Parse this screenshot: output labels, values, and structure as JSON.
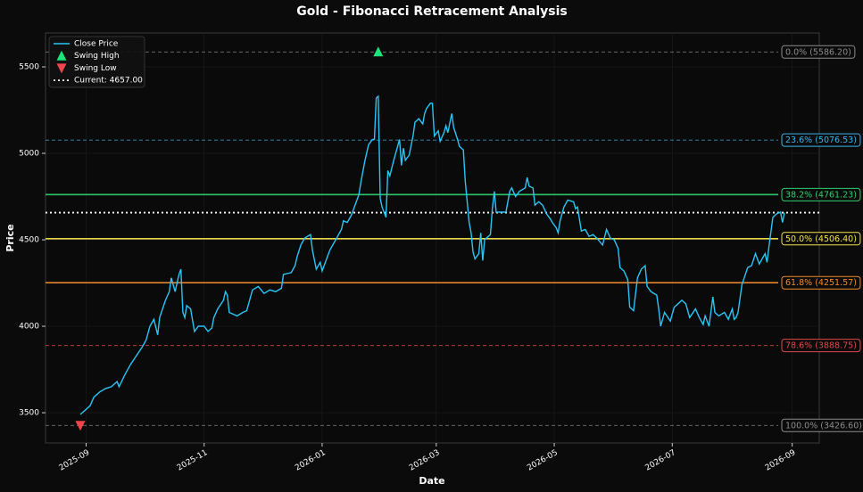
{
  "chart_data": {
    "type": "line",
    "title": "Gold - Fibonacci Retracement Analysis",
    "x_label": "Date",
    "y_label": "Price",
    "x": [
      "2025-08-29",
      "2025-09-03",
      "2025-09-05",
      "2025-09-08",
      "2025-09-11",
      "2025-09-14",
      "2025-09-17",
      "2025-09-18",
      "2025-09-21",
      "2025-09-24",
      "2025-09-27",
      "2025-09-30",
      "2025-10-02",
      "2025-10-04",
      "2025-10-06",
      "2025-10-08",
      "2025-10-09",
      "2025-10-12",
      "2025-10-14",
      "2025-10-15",
      "2025-10-17",
      "2025-10-19",
      "2025-10-20",
      "2025-10-21",
      "2025-10-22",
      "2025-10-23",
      "2025-10-25",
      "2025-10-27",
      "2025-10-29",
      "2025-11-01",
      "2025-11-03",
      "2025-11-05",
      "2025-11-06",
      "2025-11-08",
      "2025-11-11",
      "2025-11-12",
      "2025-11-13",
      "2025-11-14",
      "2025-11-18",
      "2025-11-21",
      "2025-11-23",
      "2025-11-26",
      "2025-11-29",
      "2025-12-02",
      "2025-12-05",
      "2025-12-08",
      "2025-12-11",
      "2025-12-12",
      "2025-12-16",
      "2025-12-18",
      "2025-12-19",
      "2025-12-21",
      "2025-12-23",
      "2025-12-26",
      "2025-12-27",
      "2025-12-29",
      "2025-12-31",
      "2026-01-01",
      "2026-01-03",
      "2026-01-05",
      "2026-01-07",
      "2026-01-09",
      "2026-01-11",
      "2026-01-12",
      "2026-01-14",
      "2026-01-16",
      "2026-01-18",
      "2026-01-20",
      "2026-01-21",
      "2026-01-23",
      "2026-01-25",
      "2026-01-27",
      "2026-01-28",
      "2026-01-29",
      "2026-01-30",
      "2026-01-31",
      "2026-02-01",
      "2026-02-03",
      "2026-02-04",
      "2026-02-05",
      "2026-02-07",
      "2026-02-09",
      "2026-02-10",
      "2026-02-11",
      "2026-02-12",
      "2026-02-13",
      "2026-02-15",
      "2026-02-17",
      "2026-02-18",
      "2026-02-20",
      "2026-02-22",
      "2026-02-23",
      "2026-02-24",
      "2026-02-26",
      "2026-02-27",
      "2026-02-28",
      "2026-03-02",
      "2026-03-03",
      "2026-03-05",
      "2026-03-06",
      "2026-03-07",
      "2026-03-09",
      "2026-03-10",
      "2026-03-12",
      "2026-03-13",
      "2026-03-15",
      "2026-03-16",
      "2026-03-18",
      "2026-03-19",
      "2026-03-20",
      "2026-03-21",
      "2026-03-23",
      "2026-03-24",
      "2026-03-25",
      "2026-03-26",
      "2026-03-29",
      "2026-03-30",
      "2026-03-31",
      "2026-04-01",
      "2026-04-06",
      "2026-04-08",
      "2026-04-09",
      "2026-04-11",
      "2026-04-13",
      "2026-04-16",
      "2026-04-17",
      "2026-04-18",
      "2026-04-20",
      "2026-04-21",
      "2026-04-23",
      "2026-04-25",
      "2026-04-27",
      "2026-04-29",
      "2026-04-30",
      "2026-05-02",
      "2026-05-03",
      "2026-05-04",
      "2026-05-06",
      "2026-05-08",
      "2026-05-11",
      "2026-05-12",
      "2026-05-13",
      "2026-05-15",
      "2026-05-17",
      "2026-05-19",
      "2026-05-21",
      "2026-05-23",
      "2026-05-26",
      "2026-05-28",
      "2026-05-30",
      "2026-06-01",
      "2026-06-03",
      "2026-06-04",
      "2026-06-06",
      "2026-06-08",
      "2026-06-09",
      "2026-06-11",
      "2026-06-13",
      "2026-06-15",
      "2026-06-17",
      "2026-06-18",
      "2026-06-20",
      "2026-06-23",
      "2026-06-24",
      "2026-06-25",
      "2026-06-27",
      "2026-06-30",
      "2026-07-02",
      "2026-07-04",
      "2026-07-06",
      "2026-07-08",
      "2026-07-10",
      "2026-07-13",
      "2026-07-15",
      "2026-07-17",
      "2026-07-18",
      "2026-07-20",
      "2026-07-22",
      "2026-07-23",
      "2026-07-25",
      "2026-07-28",
      "2026-07-30",
      "2026-08-01",
      "2026-08-02",
      "2026-08-03",
      "2026-08-04",
      "2026-08-06",
      "2026-08-09",
      "2026-08-11",
      "2026-08-13",
      "2026-08-15",
      "2026-08-17",
      "2026-08-18",
      "2026-08-19",
      "2026-08-20",
      "2026-08-22",
      "2026-08-24",
      "2026-08-26",
      "2026-08-27",
      "2026-08-28"
    ],
    "series": [
      {
        "name": "Close Price",
        "color": "#29c5f6",
        "values": [
          3490,
          3540,
          3590,
          3620,
          3640,
          3650,
          3680,
          3650,
          3720,
          3780,
          3830,
          3880,
          3920,
          4000,
          4040,
          3950,
          4050,
          4150,
          4200,
          4280,
          4200,
          4300,
          4330,
          4080,
          4050,
          4120,
          4100,
          3970,
          4000,
          4000,
          3970,
          3990,
          4050,
          4100,
          4150,
          4200,
          4180,
          4080,
          4060,
          4080,
          4090,
          4210,
          4230,
          4190,
          4210,
          4200,
          4220,
          4300,
          4310,
          4350,
          4400,
          4470,
          4510,
          4530,
          4440,
          4330,
          4370,
          4320,
          4380,
          4440,
          4480,
          4520,
          4560,
          4610,
          4600,
          4640,
          4700,
          4760,
          4830,
          4950,
          5050,
          5080,
          5080,
          5320,
          5330,
          4740,
          4690,
          4630,
          4900,
          4870,
          4960,
          5040,
          5080,
          4930,
          5030,
          4960,
          4990,
          5100,
          5180,
          5200,
          5170,
          5230,
          5260,
          5290,
          5290,
          5100,
          5130,
          5070,
          5120,
          5160,
          5120,
          5230,
          5150,
          5080,
          5040,
          5020,
          4840,
          4600,
          4540,
          4430,
          4390,
          4420,
          4540,
          4380,
          4500,
          4530,
          4680,
          4780,
          4660,
          4660,
          4780,
          4800,
          4750,
          4780,
          4800,
          4860,
          4810,
          4800,
          4700,
          4720,
          4700,
          4650,
          4620,
          4600,
          4570,
          4540,
          4610,
          4690,
          4730,
          4720,
          4680,
          4690,
          4550,
          4560,
          4520,
          4530,
          4510,
          4470,
          4560,
          4510,
          4500,
          4450,
          4340,
          4320,
          4270,
          4110,
          4090,
          4280,
          4330,
          4350,
          4230,
          4200,
          4180,
          4100,
          4000,
          4080,
          4030,
          4110,
          4130,
          4150,
          4130,
          4050,
          4100,
          4050,
          4010,
          4060,
          4000,
          4170,
          4080,
          4060,
          4080,
          4040,
          4100,
          4040,
          4050,
          4080,
          4240,
          4340,
          4350,
          4420,
          4360,
          4400,
          4420,
          4370,
          4460,
          4630,
          4650,
          4660,
          4600,
          4657
        ]
      }
    ],
    "xlim": [
      "2025-08-11",
      "2026-09-15"
    ],
    "xticks": [
      {
        "value": "2025-09-01",
        "label": "2025-09"
      },
      {
        "value": "2025-11-01",
        "label": "2025-11"
      },
      {
        "value": "2026-01-01",
        "label": "2026-01"
      },
      {
        "value": "2026-03-01",
        "label": "2026-03"
      },
      {
        "value": "2026-05-01",
        "label": "2026-05"
      },
      {
        "value": "2026-07-01",
        "label": "2026-07"
      },
      {
        "value": "2026-09-01",
        "label": "2026-09"
      }
    ],
    "ylim": [
      3325,
      5696
    ],
    "yticks": [
      3500,
      4000,
      4500,
      5000,
      5500
    ],
    "grid": true,
    "legend": "upper left",
    "swing_high": {
      "name": "Swing High",
      "x": "2026-01-30",
      "value": 5586.2,
      "color": "#1ee37a"
    },
    "swing_low": {
      "name": "Swing Low",
      "x": "2025-08-29",
      "value": 3426.6,
      "color": "#f0444c"
    },
    "current": {
      "name": "Current: 4657.00",
      "value": 4657,
      "color": "#ffffff"
    },
    "fib_levels": [
      {
        "label": "0.0% (5586.20)",
        "value": 5586.2,
        "color": "#8c8c8c",
        "style": "dashed"
      },
      {
        "label": "23.6% (5076.53)",
        "value": 5076.53,
        "color": "#3bb4e8",
        "style": "dashed"
      },
      {
        "label": "38.2% (4761.23)",
        "value": 4761.23,
        "color": "#2fcf6f",
        "style": "solid"
      },
      {
        "label": "50.0% (4506.40)",
        "value": 4506.4,
        "color": "#f2e24c",
        "style": "solid"
      },
      {
        "label": "61.8% (4251.57)",
        "value": 4251.57,
        "color": "#f08a2a",
        "style": "solid"
      },
      {
        "label": "78.6% (3888.75)",
        "value": 3888.75,
        "color": "#e04848",
        "style": "dashed"
      },
      {
        "label": "100.0% (3426.60)",
        "value": 3426.6,
        "color": "#8c8c8c",
        "style": "dashed"
      }
    ]
  }
}
